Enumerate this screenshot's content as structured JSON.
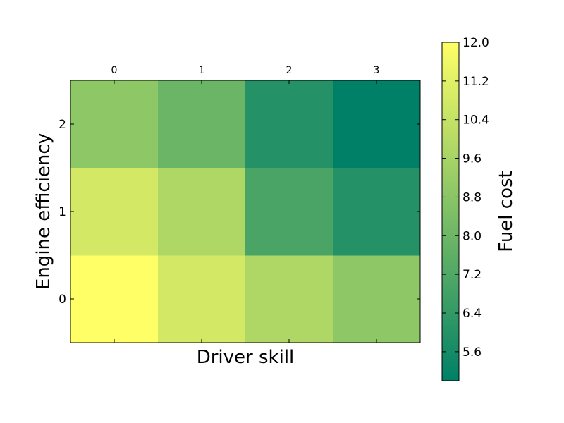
{
  "chart_data": {
    "type": "heatmap",
    "xlabel": "Driver skill",
    "ylabel": "Engine efficiency",
    "x_categories": [
      "0",
      "1",
      "2",
      "3"
    ],
    "y_categories": [
      "0",
      "1",
      "2"
    ],
    "values": [
      [
        12.0,
        10.8,
        9.8,
        8.9
      ],
      [
        10.8,
        9.8,
        7.0,
        6.0
      ],
      [
        8.9,
        7.9,
        6.0,
        5.0
      ]
    ],
    "colorbar": {
      "label": "Fuel cost",
      "range": [
        5.0,
        12.0
      ],
      "ticks": [
        "5.6",
        "6.4",
        "7.2",
        "8.0",
        "8.8",
        "9.6",
        "10.4",
        "11.2",
        "12.0"
      ],
      "colormap": "summer",
      "low_color": "#008066",
      "high_color": "#ffff66"
    },
    "x_tick_position": "top",
    "grid": false
  }
}
